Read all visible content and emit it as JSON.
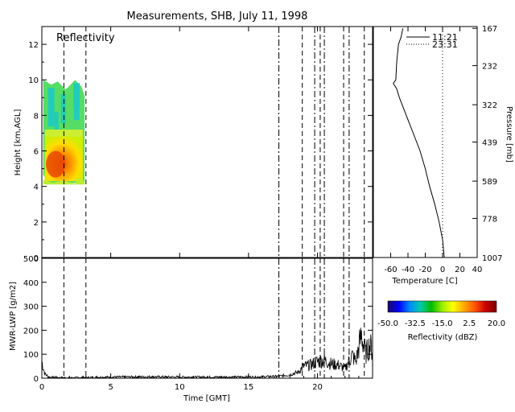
{
  "chart_data": [
    {
      "type": "heatmap",
      "title": "Measurements, SHB, July 11, 1998",
      "panel_label": "Reflectivity",
      "ylabel": "Height [km,AGL]",
      "xlim": [
        0,
        24
      ],
      "ylim": [
        0,
        13
      ],
      "yticks": [
        0,
        2,
        4,
        6,
        8,
        10,
        12
      ],
      "xticks": [
        0,
        5,
        10,
        15,
        20
      ],
      "cloud_time_range": [
        0.1,
        3.1
      ],
      "cloud_height_range": [
        4.2,
        10.0
      ],
      "core_height": [
        4.5,
        6.0
      ],
      "dash_lines": [
        1.6,
        3.2,
        18.9,
        20.2,
        21.9,
        23.4
      ],
      "dashdot_lines": [
        17.2,
        19.8,
        20.5,
        22.3
      ]
    },
    {
      "type": "line",
      "xlabel": "Time [GMT]",
      "ylabel": "MWR-LWP [g/m2]",
      "xlim": [
        0,
        24
      ],
      "ylim": [
        0,
        500
      ],
      "yticks": [
        0,
        100,
        200,
        300,
        400,
        500
      ],
      "xticks": [
        0,
        5,
        10,
        15,
        20
      ],
      "series": [
        {
          "x": [
            0,
            0.2,
            0.5,
            1.0,
            2.0,
            3.0,
            5.0,
            8.0,
            10.0,
            12.0,
            14.0,
            16.0,
            17.2,
            18.0,
            18.6,
            19.0,
            19.5,
            20.0,
            20.5,
            21.0,
            21.5,
            22.0,
            22.5,
            22.8,
            23.0,
            23.2,
            23.5,
            23.8,
            24.0
          ],
          "values": [
            70,
            20,
            5,
            3,
            2,
            3,
            5,
            6,
            5,
            5,
            5,
            6,
            8,
            15,
            25,
            50,
            55,
            70,
            75,
            60,
            55,
            40,
            95,
            70,
            130,
            180,
            100,
            140,
            110
          ]
        }
      ]
    },
    {
      "type": "line",
      "xlabel": "Temperature [C]",
      "ylabel": "Pressure [mb]",
      "xlim": [
        -80,
        40
      ],
      "ylim": [
        0,
        13
      ],
      "xticks": [
        -60,
        -40,
        -20,
        0,
        20,
        40
      ],
      "right_ticks": [
        "167",
        "232",
        "322",
        "439",
        "589",
        "778",
        "1007"
      ],
      "right_tick_heights": [
        12.9,
        10.8,
        8.6,
        6.5,
        4.3,
        2.2,
        0.0
      ],
      "series": [
        {
          "name": "11:21",
          "style": "solid",
          "height": [
            0,
            1,
            2,
            3,
            4,
            5,
            6,
            7,
            8,
            9,
            9.5,
            9.8,
            10,
            11,
            12,
            12.4,
            12.9
          ],
          "temperature": [
            2,
            0,
            -4,
            -9,
            -15,
            -20,
            -26,
            -34,
            -42,
            -50,
            -53,
            -57,
            -54,
            -53,
            -51,
            -48,
            -46
          ]
        },
        {
          "name": "23:31",
          "style": "dotted",
          "height": [
            0,
            2,
            4,
            6,
            8,
            10,
            12.9
          ],
          "temperature": [
            0,
            0,
            0,
            0,
            0,
            0,
            0
          ]
        }
      ]
    },
    {
      "type": "colorbar",
      "label": "Reflectivity (dBZ)",
      "tick_labels": [
        "-50.0",
        "-32.5",
        "-15.0",
        "2.5",
        "20.0"
      ],
      "range": [
        -50,
        20
      ],
      "colors": [
        "#1a0a66",
        "#0000ff",
        "#0088ff",
        "#00ccaa",
        "#00bb00",
        "#99ee00",
        "#ffff00",
        "#ffaa00",
        "#ff5500",
        "#cc0000",
        "#7a0000"
      ]
    }
  ]
}
